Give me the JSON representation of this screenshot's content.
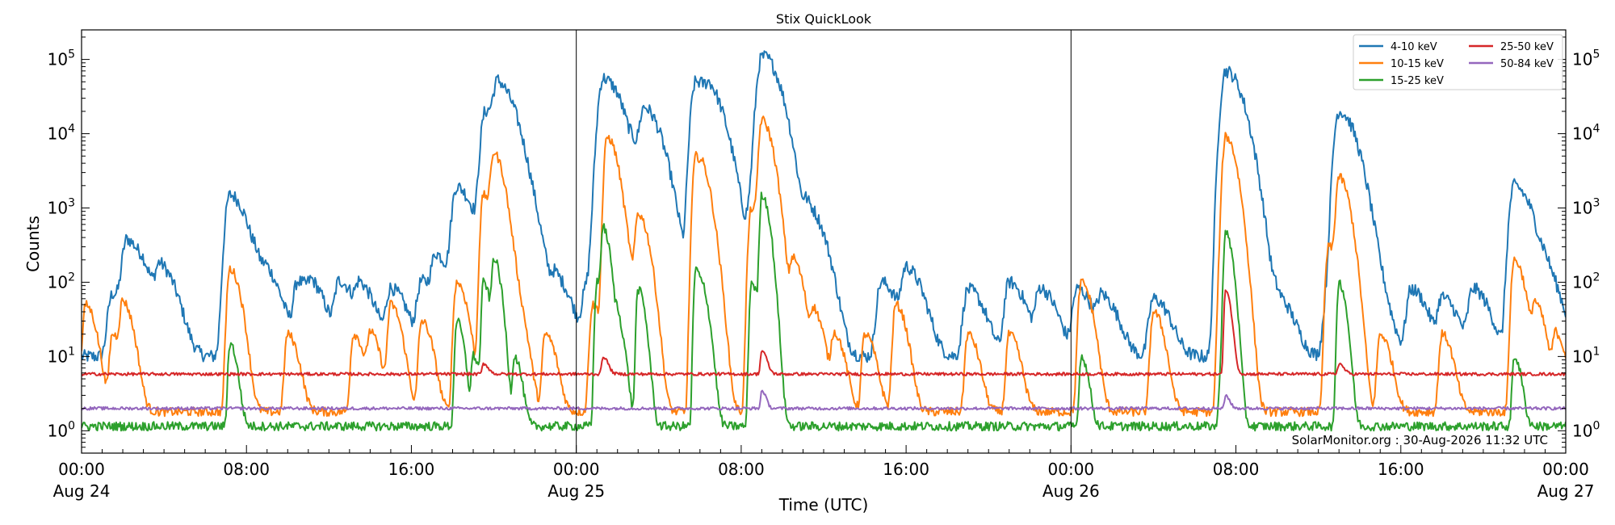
{
  "chart_data": {
    "type": "line",
    "title": "Stix QuickLook",
    "xlabel": "Time (UTC)",
    "ylabel": "Counts",
    "yscale": "log",
    "ylim": [
      0.5,
      250000
    ],
    "xlim_hours": [
      0,
      72
    ],
    "x_unit": "hours since 00:00 Aug 24",
    "x_ticks": [
      {
        "x": 0,
        "time": "00:00",
        "date": "Aug 24"
      },
      {
        "x": 8,
        "time": "08:00",
        "date": ""
      },
      {
        "x": 16,
        "time": "16:00",
        "date": ""
      },
      {
        "x": 24,
        "time": "00:00",
        "date": "Aug 25"
      },
      {
        "x": 32,
        "time": "08:00",
        "date": ""
      },
      {
        "x": 40,
        "time": "16:00",
        "date": ""
      },
      {
        "x": 48,
        "time": "00:00",
        "date": "Aug 26"
      },
      {
        "x": 56,
        "time": "08:00",
        "date": ""
      },
      {
        "x": 64,
        "time": "16:00",
        "date": ""
      },
      {
        "x": 72,
        "time": "00:00",
        "date": "Aug 27"
      }
    ],
    "y_ticks": [
      {
        "value": 1,
        "label": "10",
        "exp": "0"
      },
      {
        "value": 10,
        "label": "10",
        "exp": "1"
      },
      {
        "value": 100,
        "label": "10",
        "exp": "2"
      },
      {
        "value": 1000,
        "label": "10",
        "exp": "3"
      },
      {
        "value": 10000,
        "label": "10",
        "exp": "4"
      },
      {
        "value": 100000,
        "label": "10",
        "exp": "5"
      }
    ],
    "day_boundaries": [
      24,
      48
    ],
    "legend_position": "top-right",
    "series": [
      {
        "name": "4-10 keV",
        "color": "#1f77b4",
        "baseline": 10,
        "peaks": [
          [
            1.5,
            70
          ],
          [
            2.2,
            350
          ],
          [
            3.0,
            60
          ],
          [
            3.8,
            150
          ],
          [
            7.2,
            1500
          ],
          [
            8.5,
            100
          ],
          [
            9.0,
            80
          ],
          [
            10.5,
            100
          ],
          [
            11.2,
            60
          ],
          [
            12.5,
            100
          ],
          [
            13.5,
            80
          ],
          [
            15.0,
            80
          ],
          [
            16.5,
            100
          ],
          [
            17.2,
            200
          ],
          [
            18.2,
            400
          ],
          [
            18.2,
            1500
          ],
          [
            19.0,
            80
          ],
          [
            19.6,
            20000
          ],
          [
            20.2,
            40000
          ],
          [
            21.0,
            2000
          ],
          [
            22.0,
            100
          ],
          [
            23.0,
            100
          ],
          [
            24.5,
            80
          ],
          [
            25.0,
            1000
          ],
          [
            25.3,
            55000
          ],
          [
            26.0,
            5000
          ],
          [
            26.8,
            3000
          ],
          [
            27.3,
            20000
          ],
          [
            28.5,
            200
          ],
          [
            29.8,
            50000
          ],
          [
            30.2,
            2000
          ],
          [
            30.5,
            20000
          ],
          [
            32.5,
            1000
          ],
          [
            32.8,
            5000
          ],
          [
            33.0,
            100000
          ],
          [
            33.3,
            10000
          ],
          [
            35.2,
            1000
          ],
          [
            38.8,
            100
          ],
          [
            40.0,
            150
          ],
          [
            43.0,
            80
          ],
          [
            45.0,
            100
          ],
          [
            46.5,
            80
          ],
          [
            48.3,
            80
          ],
          [
            49.5,
            60
          ],
          [
            52.0,
            60
          ],
          [
            55.5,
            70000
          ],
          [
            56.5,
            50
          ],
          [
            58.0,
            60
          ],
          [
            60.5,
            80
          ],
          [
            61.0,
            20000
          ],
          [
            62.5,
            100
          ],
          [
            64.5,
            80
          ],
          [
            66.0,
            60
          ],
          [
            67.5,
            80
          ],
          [
            69.5,
            2000
          ],
          [
            70.3,
            100
          ],
          [
            71.0,
            100
          ]
        ]
      },
      {
        "name": "10-15 keV",
        "color": "#ff7f0e",
        "baseline": 1.8,
        "peaks": [
          [
            0.2,
            50
          ],
          [
            1.5,
            20
          ],
          [
            2.0,
            50
          ],
          [
            7.2,
            150
          ],
          [
            10.0,
            20
          ],
          [
            13.2,
            20
          ],
          [
            14.0,
            20
          ],
          [
            15.0,
            50
          ],
          [
            16.5,
            30
          ],
          [
            18.2,
            100
          ],
          [
            19.5,
            1500
          ],
          [
            20.0,
            5000
          ],
          [
            21.0,
            60
          ],
          [
            22.5,
            20
          ],
          [
            24.8,
            50
          ],
          [
            25.5,
            9000
          ],
          [
            26.5,
            100
          ],
          [
            27.0,
            800
          ],
          [
            29.8,
            5000
          ],
          [
            30.2,
            800
          ],
          [
            32.5,
            1000
          ],
          [
            33.0,
            15000
          ],
          [
            33.5,
            300
          ],
          [
            34.5,
            200
          ],
          [
            35.5,
            40
          ],
          [
            36.5,
            20
          ],
          [
            38.0,
            20
          ],
          [
            39.5,
            50
          ],
          [
            43.0,
            20
          ],
          [
            45.0,
            20
          ],
          [
            48.5,
            100
          ],
          [
            52.0,
            40
          ],
          [
            55.3,
            200
          ],
          [
            55.5,
            9000
          ],
          [
            56.0,
            20
          ],
          [
            60.5,
            300
          ],
          [
            61.0,
            2500
          ],
          [
            63.0,
            20
          ],
          [
            66.0,
            20
          ],
          [
            69.5,
            200
          ],
          [
            70.5,
            50
          ],
          [
            71.5,
            20
          ]
        ]
      },
      {
        "name": "15-25 keV",
        "color": "#2ca02c",
        "baseline": 1.15,
        "peaks": [
          [
            7.2,
            15
          ],
          [
            18.2,
            30
          ],
          [
            19.0,
            10
          ],
          [
            19.5,
            100
          ],
          [
            20.0,
            200
          ],
          [
            21.0,
            10
          ],
          [
            25.0,
            100
          ],
          [
            25.3,
            500
          ],
          [
            26.0,
            30
          ],
          [
            27.0,
            80
          ],
          [
            29.8,
            150
          ],
          [
            30.2,
            40
          ],
          [
            32.5,
            100
          ],
          [
            33.0,
            1500
          ],
          [
            33.3,
            100
          ],
          [
            48.5,
            10
          ],
          [
            55.3,
            10
          ],
          [
            55.5,
            450
          ],
          [
            61.0,
            100
          ],
          [
            69.5,
            10
          ]
        ]
      },
      {
        "name": "25-50 keV",
        "color": "#d62728",
        "baseline": 5.8,
        "peaks": [
          [
            19.5,
            8
          ],
          [
            25.3,
            10
          ],
          [
            33.0,
            12
          ],
          [
            55.5,
            80
          ],
          [
            61.0,
            8
          ]
        ]
      },
      {
        "name": "50-84 keV",
        "color": "#9467bd",
        "baseline": 2.0,
        "peaks": [
          [
            33.0,
            3.5
          ],
          [
            55.5,
            3
          ]
        ]
      }
    ],
    "footer": "SolarMonitor.org : 30-Aug-2026 11:32 UTC"
  }
}
